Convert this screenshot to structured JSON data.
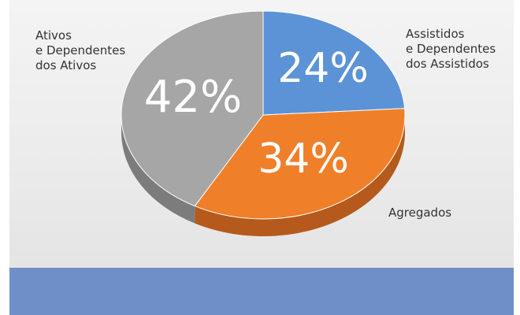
{
  "chart_data": {
    "type": "pie",
    "style": "3d",
    "categories": [
      "Assistidos e Dependentes dos Assistidos",
      "Agregados",
      "Ativos e Dependentes dos Ativos"
    ],
    "values": [
      24,
      34,
      42
    ],
    "value_labels": [
      "24%",
      "34%",
      "42%"
    ],
    "label_lines": [
      [
        "Assistidos",
        "e Dependentes",
        "dos Assistidos"
      ],
      [
        "Agregados"
      ],
      [
        "Ativos",
        "e Dependentes",
        "dos Ativos"
      ]
    ],
    "colors": [
      "#5b93d6",
      "#f07f2a",
      "#a6a6a6"
    ],
    "side_colors": [
      "#3f6fa8",
      "#b55a1c",
      "#7c7c7c"
    ],
    "legend": "none"
  }
}
